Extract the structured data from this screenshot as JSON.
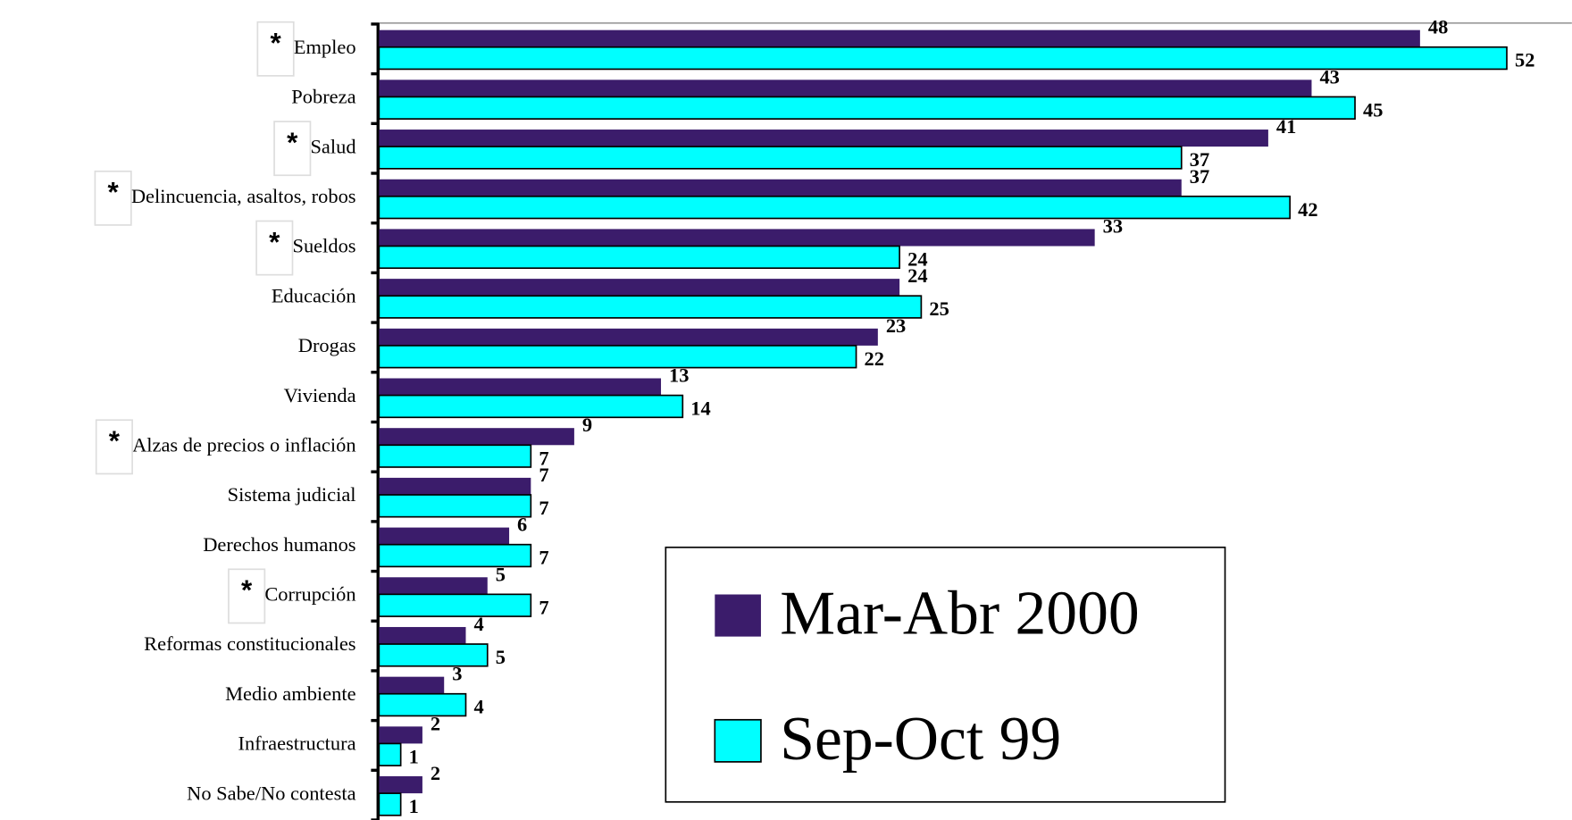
{
  "chart_data": {
    "type": "bar",
    "orientation": "horizontal",
    "categories": [
      "Empleo",
      "Pobreza",
      "Salud",
      "Delincuencia, asaltos, robos",
      "Sueldos",
      "Educación",
      "Drogas",
      "Vivienda",
      "Alzas de precios o inflación",
      "Sistema judicial",
      "Derechos humanos",
      "Corrupción",
      "Reformas constitucionales",
      "Medio ambiente",
      "Infraestructura",
      "No Sabe/No contesta"
    ],
    "flags": [
      "*",
      null,
      "*",
      "*",
      "*",
      null,
      null,
      null,
      "*",
      null,
      null,
      "*",
      null,
      null,
      null,
      null
    ],
    "series": [
      {
        "name": "Mar-Abr 2000",
        "color": "#3b1c6b",
        "values": [
          48,
          43,
          41,
          37,
          33,
          24,
          23,
          13,
          9,
          7,
          6,
          5,
          4,
          3,
          2,
          2
        ]
      },
      {
        "name": "Sep-Oct 99",
        "color": "#00ffff",
        "values": [
          52,
          45,
          37,
          42,
          24,
          25,
          22,
          14,
          7,
          7,
          7,
          7,
          5,
          4,
          1,
          1
        ]
      }
    ],
    "xlim": [
      0,
      55
    ]
  }
}
